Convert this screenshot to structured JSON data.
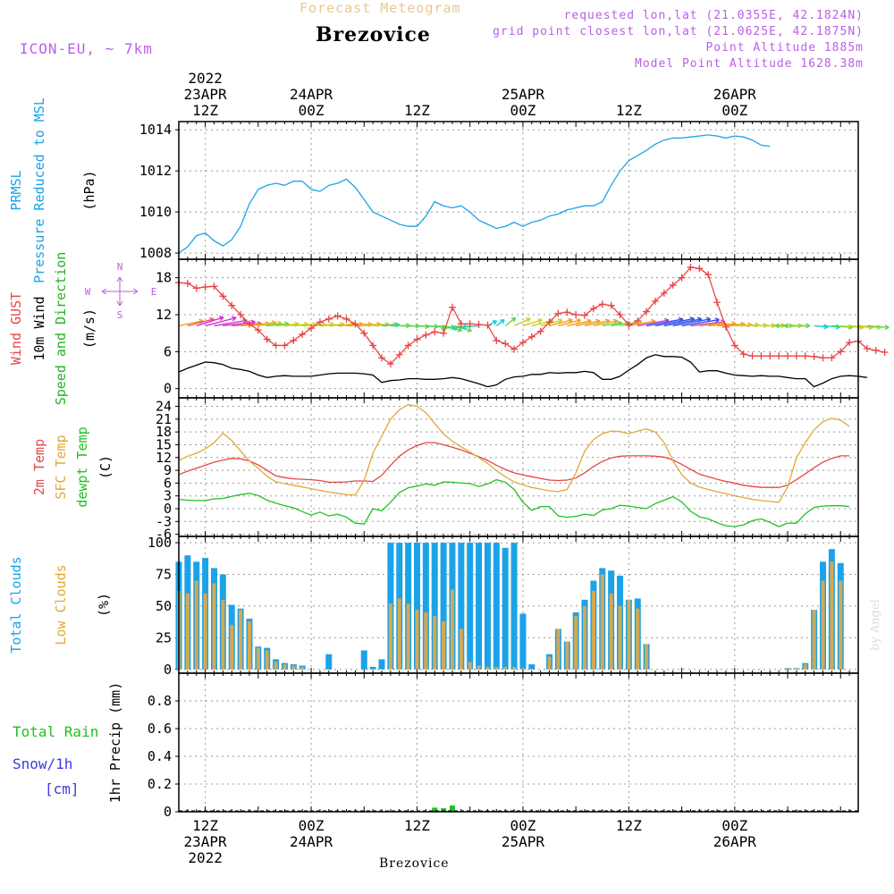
{
  "header": {
    "title_faint": "Forecast Meteogram",
    "station": "Brezovice",
    "model": "ICON-EU, ~ 7km",
    "requested": "requested lon,lat (21.0355E, 42.1824N)",
    "gridpoint": "grid point closest lon,lat (21.0625E, 42.1875N)",
    "point_alt": "Point Altitude 1885m",
    "model_alt": "Model Point Altitude 1628.38m"
  },
  "footer": {
    "station": "Brezovice",
    "credit": "by Angel"
  },
  "time_axis": {
    "start_hour": 9,
    "end_hour": 86,
    "ticks": [
      {
        "hour": 12,
        "top": [
          "2022",
          "23APR",
          "12Z"
        ],
        "bottom": [
          "12Z",
          "23APR",
          "2022"
        ]
      },
      {
        "hour": 24,
        "top": [
          "24APR",
          "00Z"
        ],
        "bottom": [
          "00Z",
          "24APR"
        ]
      },
      {
        "hour": 36,
        "top": [
          "12Z"
        ],
        "bottom": [
          "12Z"
        ]
      },
      {
        "hour": 48,
        "top": [
          "25APR",
          "00Z"
        ],
        "bottom": [
          "00Z",
          "25APR"
        ]
      },
      {
        "hour": 60,
        "top": [
          "12Z"
        ],
        "bottom": [
          "12Z"
        ]
      },
      {
        "hour": 72,
        "top": [
          "26APR",
          "00Z"
        ],
        "bottom": [
          "00Z",
          "26APR"
        ]
      }
    ]
  },
  "chart_data": [
    {
      "type": "line",
      "panel": "pressure",
      "ylabels": [
        {
          "text": "PRMSL",
          "color": "#1aa3e8"
        },
        {
          "text": "Pressure Reduced to MSL",
          "color": "#1aa3e8"
        },
        {
          "text": "(hPa)",
          "color": "#000000"
        }
      ],
      "ylim": [
        1007.7,
        1014.4
      ],
      "yticks": [
        1008,
        1010,
        1012,
        1014
      ],
      "x_start": 9,
      "x_step": 1,
      "series": [
        {
          "color": "#1aa3e8",
          "values": [
            1008.0,
            1008.3,
            1008.85,
            1008.98,
            1008.6,
            1008.35,
            1008.65,
            1009.3,
            1010.4,
            1011.1,
            1011.3,
            1011.4,
            1011.3,
            1011.5,
            1011.5,
            1011.1,
            1011.0,
            1011.3,
            1011.4,
            1011.6,
            1011.2,
            1010.6,
            1010.0,
            1009.8,
            1009.6,
            1009.4,
            1009.3,
            1009.3,
            1009.8,
            1010.5,
            1010.3,
            1010.2,
            1010.3,
            1010.0,
            1009.6,
            1009.4,
            1009.2,
            1009.3,
            1009.5,
            1009.3,
            1009.5,
            1009.6,
            1009.8,
            1009.9,
            1010.1,
            1010.2,
            1010.3,
            1010.3,
            1010.5,
            1011.3,
            1012.0,
            1012.5,
            1012.75,
            1013.0,
            1013.3,
            1013.5,
            1013.6,
            1013.6,
            1013.65,
            1013.7,
            1013.75,
            1013.7,
            1013.6,
            1013.7,
            1013.65,
            1013.5,
            1013.25,
            1013.2
          ]
        }
      ]
    },
    {
      "type": "line",
      "panel": "wind",
      "ylabels": [
        {
          "text": "Wind GUST",
          "color": "#e84545"
        },
        {
          "text": "10m Wind",
          "color": "#000000"
        },
        {
          "text": "Speed and Direction",
          "color": "#22b522"
        },
        {
          "text": "(m/s)",
          "color": "#000000"
        }
      ],
      "compass": [
        "N",
        "S",
        "W",
        "E"
      ],
      "ylim": [
        -1.5,
        21
      ],
      "yticks": [
        0,
        6,
        12,
        18
      ],
      "x_start": 9,
      "x_step": 1,
      "barb_base": 10.2,
      "series": [
        {
          "name": "Wind GUST",
          "color": "#e84545",
          "marker": "+",
          "values": [
            17.2,
            17.1,
            16.3,
            16.5,
            16.6,
            15.0,
            13.5,
            12.0,
            10.5,
            9.5,
            8.0,
            7.0,
            7.0,
            7.8,
            8.8,
            9.8,
            10.8,
            11.3,
            11.8,
            11.3,
            10.5,
            9.0,
            7.0,
            5.0,
            4.0,
            5.5,
            7.0,
            8.0,
            8.7,
            9.2,
            9.0,
            13.2,
            10.5,
            10.5,
            10.4,
            10.3,
            7.8,
            7.3,
            6.4,
            7.5,
            8.4,
            9.3,
            10.8,
            12.2,
            12.4,
            12.0,
            11.9,
            13.0,
            13.7,
            13.5,
            12.0,
            10.3,
            11.0,
            12.5,
            14.2,
            15.5,
            16.8,
            18.0,
            19.7,
            19.5,
            18.5,
            14.0,
            10.0,
            7.0,
            5.6,
            5.3,
            5.3,
            5.3,
            5.3,
            5.3,
            5.3,
            5.3,
            5.2,
            5.0,
            5.0,
            6.0,
            7.5,
            7.7,
            6.5,
            6.2,
            5.9
          ]
        },
        {
          "name": "10m Wind",
          "color": "#000000",
          "values": [
            2.7,
            3.3,
            3.8,
            4.3,
            4.2,
            3.9,
            3.3,
            3.1,
            2.8,
            2.2,
            1.8,
            2.0,
            2.1,
            2.0,
            2.0,
            2.0,
            2.2,
            2.4,
            2.5,
            2.5,
            2.5,
            2.4,
            2.2,
            1.0,
            1.3,
            1.4,
            1.6,
            1.6,
            1.5,
            1.5,
            1.6,
            1.8,
            1.6,
            1.2,
            0.8,
            0.3,
            0.6,
            1.5,
            1.9,
            2.0,
            2.3,
            2.3,
            2.6,
            2.5,
            2.6,
            2.6,
            2.8,
            2.6,
            1.5,
            1.5,
            2.0,
            3.0,
            3.9,
            5.0,
            5.5,
            5.2,
            5.2,
            5.1,
            4.3,
            2.7,
            2.9,
            2.9,
            2.5,
            2.2,
            2.1,
            2.0,
            2.1,
            2.0,
            2.0,
            1.8,
            1.6,
            1.6,
            0.3,
            0.9,
            1.6,
            2.0,
            2.1,
            2.0,
            1.8
          ]
        },
        {
          "name": "barbs",
          "type": "arrows",
          "dir_deg": [
            245,
            240,
            235,
            240,
            250,
            255,
            260,
            260,
            255,
            255,
            258,
            260,
            262,
            262,
            262,
            262,
            262,
            262,
            262,
            262,
            262,
            262,
            262,
            262,
            268,
            272,
            275,
            275,
            280,
            280,
            300,
            300,
            70,
            70,
            80,
            220,
            210,
            210,
            225,
            235,
            240,
            240,
            240,
            240,
            245,
            245,
            245,
            245,
            250,
            250,
            250,
            248,
            248,
            248,
            248,
            248,
            248,
            250,
            255,
            258,
            260,
            262,
            265,
            265,
            268,
            268,
            268,
            270,
            270,
            270,
            90,
            90,
            280,
            280,
            280,
            280,
            280,
            280,
            280,
            280,
            280
          ],
          "speed": [
            2.7,
            3.3,
            3.8,
            4.3,
            4.2,
            3.9,
            3.3,
            3.1,
            2.8,
            2.2,
            1.8,
            2.0,
            2.1,
            2.0,
            2.0,
            2.0,
            2.2,
            2.4,
            2.5,
            2.5,
            2.5,
            2.4,
            2.2,
            1.0,
            1.3,
            1.4,
            1.6,
            1.6,
            1.5,
            1.5,
            1.6,
            1.8,
            1.6,
            1.2,
            0.8,
            0.3,
            0.6,
            1.5,
            1.9,
            2.0,
            2.3,
            2.3,
            2.6,
            2.5,
            2.6,
            2.6,
            2.8,
            2.6,
            1.5,
            1.5,
            2.0,
            3.0,
            3.9,
            5.0,
            5.5,
            5.2,
            5.2,
            5.1,
            4.3,
            2.7,
            2.9,
            2.9,
            2.5,
            2.2,
            2.1,
            2.0,
            2.1,
            2.0,
            2.0,
            1.8,
            1.6,
            1.6,
            0.3,
            0.9,
            1.6,
            2.0,
            2.1,
            2.0,
            1.8
          ]
        }
      ]
    },
    {
      "type": "line",
      "panel": "temperature",
      "ylabels": [
        {
          "text": "2m Temp",
          "color": "#e84545"
        },
        {
          "text": "SFC Temp",
          "color": "#e2a838"
        },
        {
          "text": "dewpt Temp",
          "color": "#22c022"
        },
        {
          "text": "(C)",
          "color": "#000000"
        }
      ],
      "ylim": [
        -6.5,
        26
      ],
      "yticks": [
        -6,
        -3,
        0,
        3,
        6,
        9,
        12,
        15,
        18,
        21,
        24
      ],
      "x_start": 9,
      "x_step": 1,
      "series": [
        {
          "name": "2m Temp",
          "color": "#e84545",
          "values": [
            8.0,
            8.8,
            9.5,
            10.2,
            10.9,
            11.4,
            11.8,
            11.7,
            11.2,
            10.3,
            9.0,
            7.7,
            7.3,
            7.0,
            6.9,
            6.8,
            6.6,
            6.2,
            6.2,
            6.3,
            6.5,
            6.5,
            6.4,
            7.8,
            10.2,
            12.3,
            13.8,
            14.8,
            15.5,
            15.5,
            15.0,
            14.4,
            13.8,
            13.0,
            12.2,
            11.3,
            10.2,
            9.2,
            8.4,
            7.9,
            7.5,
            7.1,
            6.7,
            6.6,
            6.7,
            7.2,
            8.4,
            9.9,
            11.1,
            11.9,
            12.3,
            12.4,
            12.4,
            12.4,
            12.3,
            12.1,
            11.4,
            10.4,
            9.2,
            8.1,
            7.5,
            6.9,
            6.4,
            6.0,
            5.5,
            5.2,
            5.0,
            5.0,
            5.0,
            5.5,
            6.8,
            8.2,
            9.6,
            10.9,
            11.8,
            12.4,
            12.4
          ]
        },
        {
          "name": "SFC Temp",
          "color": "#e2a838",
          "values": [
            11.3,
            12.3,
            13.0,
            14.0,
            15.5,
            17.7,
            16.0,
            13.5,
            11.2,
            9.5,
            7.6,
            6.3,
            5.9,
            5.5,
            5.1,
            4.7,
            4.3,
            3.9,
            3.6,
            3.3,
            3.2,
            6.6,
            13.0,
            17.0,
            21.0,
            23.2,
            24.4,
            24.0,
            22.5,
            20.0,
            17.5,
            15.8,
            14.5,
            13.3,
            12.0,
            10.6,
            8.9,
            7.5,
            6.3,
            5.6,
            5.0,
            4.6,
            4.2,
            4.0,
            4.5,
            8.4,
            13.5,
            16.2,
            17.6,
            18.2,
            18.1,
            17.6,
            18.2,
            18.7,
            18.0,
            15.5,
            11.2,
            8.0,
            6.0,
            5.1,
            4.5,
            4.0,
            3.5,
            3.0,
            2.6,
            2.2,
            1.9,
            1.7,
            1.5,
            5.1,
            12.0,
            15.5,
            18.5,
            20.4,
            21.2,
            20.8,
            19.3
          ]
        },
        {
          "name": "dewpt Temp",
          "color": "#22c022",
          "values": [
            2.2,
            2.0,
            1.9,
            1.9,
            2.3,
            2.4,
            2.9,
            3.3,
            3.6,
            3.1,
            2.0,
            1.3,
            0.7,
            0.2,
            -0.7,
            -1.5,
            -0.8,
            -1.7,
            -1.3,
            -2.0,
            -3.4,
            -3.6,
            0.0,
            -0.5,
            1.5,
            3.8,
            4.9,
            5.3,
            5.8,
            5.5,
            6.3,
            6.2,
            6.0,
            5.9,
            5.2,
            5.8,
            6.8,
            6.2,
            4.5,
            1.5,
            -0.4,
            0.5,
            0.5,
            -1.7,
            -2.0,
            -1.8,
            -1.3,
            -1.6,
            -0.3,
            0.0,
            0.8,
            0.6,
            0.3,
            0.0,
            1.2,
            2.0,
            2.8,
            1.6,
            -0.6,
            -1.9,
            -2.4,
            -3.3,
            -4.0,
            -4.2,
            -3.8,
            -2.8,
            -2.4,
            -3.2,
            -4.2,
            -3.4,
            -3.4,
            -1.2,
            0.3,
            0.6,
            0.7,
            0.7,
            0.5
          ]
        }
      ]
    },
    {
      "type": "bar",
      "panel": "clouds",
      "ylabels": [
        {
          "text": "Total Clouds",
          "color": "#1aa3e8"
        },
        {
          "text": "Low Clouds",
          "color": "#e2a838"
        },
        {
          "text": "(%)",
          "color": "#000000"
        }
      ],
      "ylim": [
        -3,
        105
      ],
      "yticks": [
        0,
        25,
        50,
        75,
        100
      ],
      "x_start": 9,
      "x_step": 1,
      "series": [
        {
          "name": "Total Clouds",
          "color": "#1aa3e8",
          "values": [
            85,
            90,
            85,
            88,
            80,
            75,
            51,
            48,
            40,
            18,
            17,
            8,
            5,
            4,
            3,
            0,
            0,
            12,
            0,
            0,
            0,
            15,
            2,
            8,
            100,
            100,
            100,
            100,
            100,
            100,
            100,
            100,
            100,
            100,
            100,
            100,
            100,
            96,
            100,
            44,
            4,
            0,
            12,
            32,
            22,
            45,
            55,
            70,
            80,
            78,
            74,
            55,
            56,
            20,
            0,
            0,
            0,
            0,
            0,
            0,
            0,
            0,
            0,
            0,
            0,
            0,
            0,
            0,
            0,
            1,
            1,
            5,
            47,
            85,
            95,
            84
          ]
        },
        {
          "name": "Low Clouds",
          "color": "#d6a850",
          "values": [
            62,
            60,
            70,
            60,
            68,
            55,
            35,
            47,
            38,
            17,
            15,
            6,
            4,
            3,
            2,
            0,
            0,
            0,
            0,
            0,
            0,
            0,
            0,
            0,
            52,
            56,
            52,
            47,
            45,
            42,
            38,
            63,
            32,
            6,
            3,
            2,
            2,
            2,
            2,
            1,
            0,
            0,
            10,
            32,
            22,
            42,
            50,
            62,
            75,
            60,
            50,
            55,
            48,
            20,
            0,
            0,
            0,
            0,
            0,
            0,
            0,
            0,
            0,
            0,
            0,
            0,
            0,
            0,
            0,
            1,
            1,
            4,
            47,
            70,
            85,
            70
          ]
        }
      ]
    },
    {
      "type": "bar",
      "panel": "precip",
      "ylabels": [
        {
          "text": "1hr Precip (mm)",
          "color": "#000000"
        }
      ],
      "legend": [
        {
          "text": "Total  Rain",
          "color": "#22c022"
        },
        {
          "text": "Snow/1h",
          "color": "#3a3ae0"
        },
        {
          "text": "[cm]",
          "color": "#3a3ae0"
        }
      ],
      "ylim": [
        0,
        1.0
      ],
      "yticks": [
        0,
        0.2,
        0.4,
        0.6,
        0.8
      ],
      "series": [
        {
          "name": "Total Rain",
          "color": "#22c022",
          "x": [
            38,
            39,
            40
          ],
          "values": [
            0.03,
            0.025,
            0.045
          ]
        }
      ]
    }
  ]
}
